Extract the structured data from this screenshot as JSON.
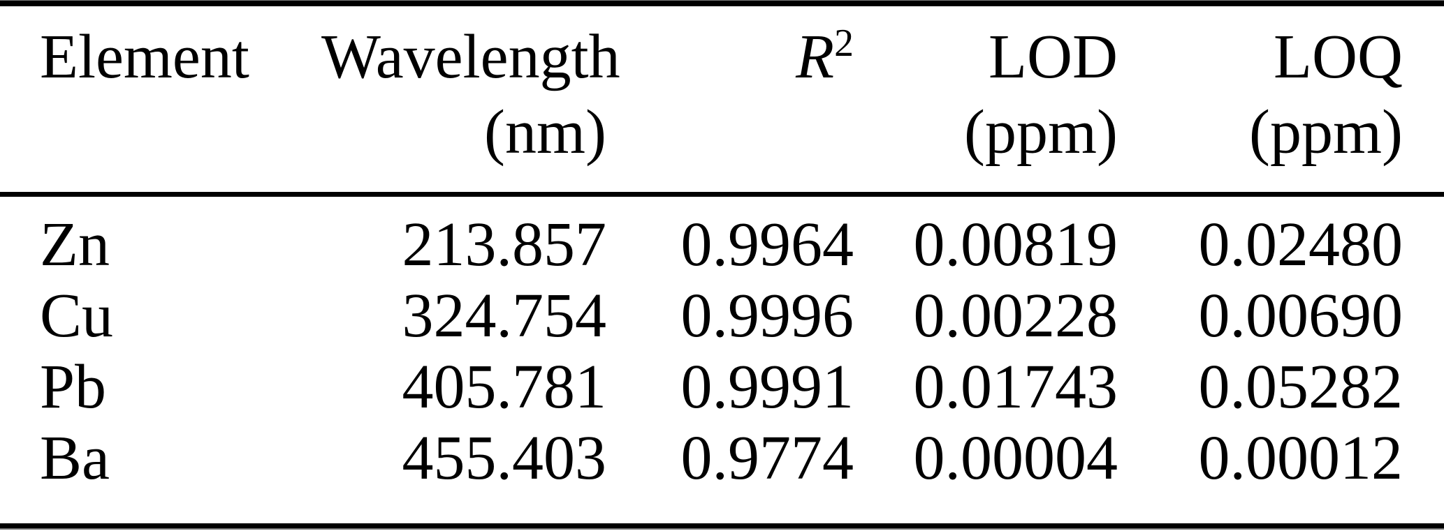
{
  "meta": {
    "background": "#ffffff",
    "text_color": "#000000",
    "rule_color": "#000000"
  },
  "table": {
    "header": {
      "element": {
        "line1": "Element",
        "line2": ""
      },
      "wavelength": {
        "line1": "Wavelength",
        "line2": "(nm)"
      },
      "r2": {
        "base": "R",
        "sup": "2",
        "line2": ""
      },
      "lod": {
        "line1": "LOD",
        "line2": "(ppm)"
      },
      "loq": {
        "line1": "LOQ",
        "line2": "(ppm)"
      }
    },
    "rows": [
      {
        "element": "Zn",
        "wavelength_nm": "213.857",
        "r2": "0.9964",
        "lod_ppm": "0.00819",
        "loq_ppm": "0.02480"
      },
      {
        "element": "Cu",
        "wavelength_nm": "324.754",
        "r2": "0.9996",
        "lod_ppm": "0.00228",
        "loq_ppm": "0.00690"
      },
      {
        "element": "Pb",
        "wavelength_nm": "405.781",
        "r2": "0.9991",
        "lod_ppm": "0.01743",
        "loq_ppm": "0.05282"
      },
      {
        "element": "Ba",
        "wavelength_nm": "455.403",
        "r2": "0.9774",
        "lod_ppm": "0.00004",
        "loq_ppm": "0.00012"
      }
    ]
  }
}
